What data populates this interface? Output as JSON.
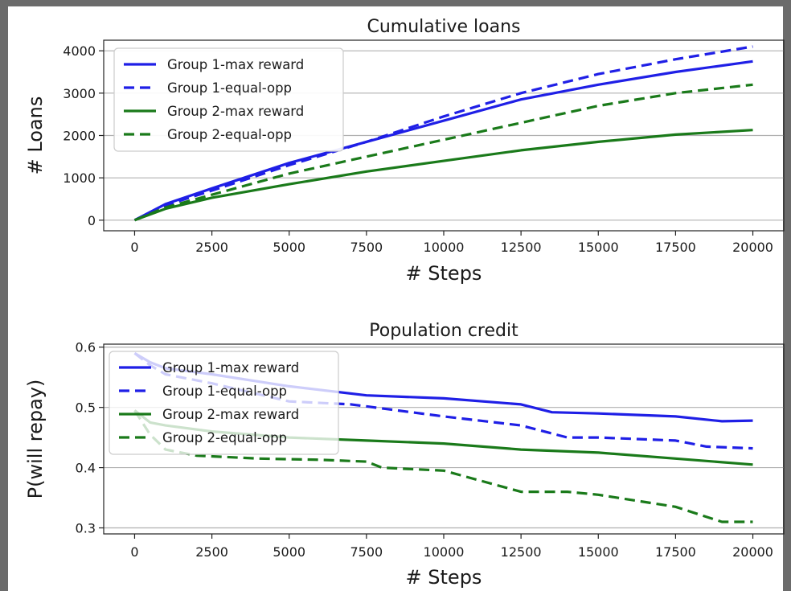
{
  "colors": {
    "blue": "#1f1fe6",
    "green": "#1a7a1a"
  },
  "chart_data": [
    {
      "type": "line",
      "title": "Cumulative loans",
      "xlabel": "# Steps",
      "ylabel": "# Loans",
      "xlim": [
        -1000,
        21000
      ],
      "ylim": [
        -250,
        4250
      ],
      "xticks": [
        0,
        2500,
        5000,
        7500,
        10000,
        12500,
        15000,
        17500,
        20000
      ],
      "yticks": [
        0,
        1000,
        2000,
        3000,
        4000
      ],
      "grid": "horizontal",
      "legend_position": "top-left",
      "series": [
        {
          "name": "Group 1-max reward",
          "color": "#1f1fe6",
          "style": "solid",
          "x": [
            0,
            1000,
            2500,
            5000,
            7500,
            10000,
            12500,
            15000,
            17500,
            20000
          ],
          "y": [
            0,
            380,
            750,
            1350,
            1850,
            2350,
            2850,
            3200,
            3500,
            3750
          ]
        },
        {
          "name": "Group 1-equal-opp",
          "color": "#1f1fe6",
          "style": "dashed",
          "x": [
            0,
            1000,
            2500,
            5000,
            7500,
            10000,
            12500,
            15000,
            17500,
            20000
          ],
          "y": [
            0,
            350,
            700,
            1300,
            1850,
            2450,
            3000,
            3450,
            3800,
            4100
          ]
        },
        {
          "name": "Group 2-max reward",
          "color": "#1a7a1a",
          "style": "solid",
          "x": [
            0,
            1000,
            2500,
            5000,
            7500,
            10000,
            12500,
            15000,
            17500,
            20000
          ],
          "y": [
            0,
            270,
            530,
            850,
            1150,
            1400,
            1650,
            1850,
            2020,
            2130
          ]
        },
        {
          "name": "Group 2-equal-opp",
          "color": "#1a7a1a",
          "style": "dashed",
          "x": [
            0,
            1000,
            2500,
            5000,
            7500,
            10000,
            12500,
            15000,
            17500,
            20000
          ],
          "y": [
            0,
            300,
            600,
            1100,
            1500,
            1900,
            2300,
            2700,
            3000,
            3200
          ]
        }
      ]
    },
    {
      "type": "line",
      "title": "Population credit",
      "xlabel": "# Steps",
      "ylabel": "P(will repay)",
      "xlim": [
        -1000,
        21000
      ],
      "ylim": [
        0.29,
        0.605
      ],
      "xticks": [
        0,
        2500,
        5000,
        7500,
        10000,
        12500,
        15000,
        17500,
        20000
      ],
      "yticks": [
        0.3,
        0.4,
        0.5,
        0.6
      ],
      "grid": "horizontal",
      "legend_position": "top-left",
      "series": [
        {
          "name": "Group 1-max reward",
          "color": "#1f1fe6",
          "style": "solid",
          "x": [
            0,
            500,
            1000,
            2500,
            5000,
            7500,
            10000,
            12500,
            13500,
            15000,
            17500,
            19000,
            20000
          ],
          "y": [
            0.59,
            0.575,
            0.565,
            0.555,
            0.535,
            0.52,
            0.515,
            0.505,
            0.492,
            0.49,
            0.485,
            0.477,
            0.478
          ]
        },
        {
          "name": "Group 1-equal-opp",
          "color": "#1f1fe6",
          "style": "dashed",
          "x": [
            0,
            500,
            1000,
            2500,
            5000,
            7000,
            10000,
            12500,
            14000,
            15000,
            17500,
            18500,
            20000
          ],
          "y": [
            0.59,
            0.57,
            0.555,
            0.54,
            0.51,
            0.505,
            0.485,
            0.47,
            0.45,
            0.45,
            0.445,
            0.435,
            0.432
          ]
        },
        {
          "name": "Group 2-max reward",
          "color": "#1a7a1a",
          "style": "solid",
          "x": [
            0,
            500,
            1000,
            2500,
            5000,
            7500,
            10000,
            12500,
            15000,
            17500,
            20000
          ],
          "y": [
            0.495,
            0.475,
            0.47,
            0.46,
            0.45,
            0.445,
            0.44,
            0.43,
            0.425,
            0.415,
            0.405
          ]
        },
        {
          "name": "Group 2-equal-opp",
          "color": "#1a7a1a",
          "style": "dashed",
          "x": [
            0,
            500,
            1000,
            2000,
            4000,
            6000,
            7500,
            8000,
            10000,
            12500,
            14000,
            15000,
            17500,
            19000,
            20000
          ],
          "y": [
            0.495,
            0.455,
            0.43,
            0.42,
            0.415,
            0.413,
            0.41,
            0.4,
            0.395,
            0.36,
            0.36,
            0.355,
            0.335,
            0.31,
            0.31
          ]
        }
      ]
    }
  ]
}
